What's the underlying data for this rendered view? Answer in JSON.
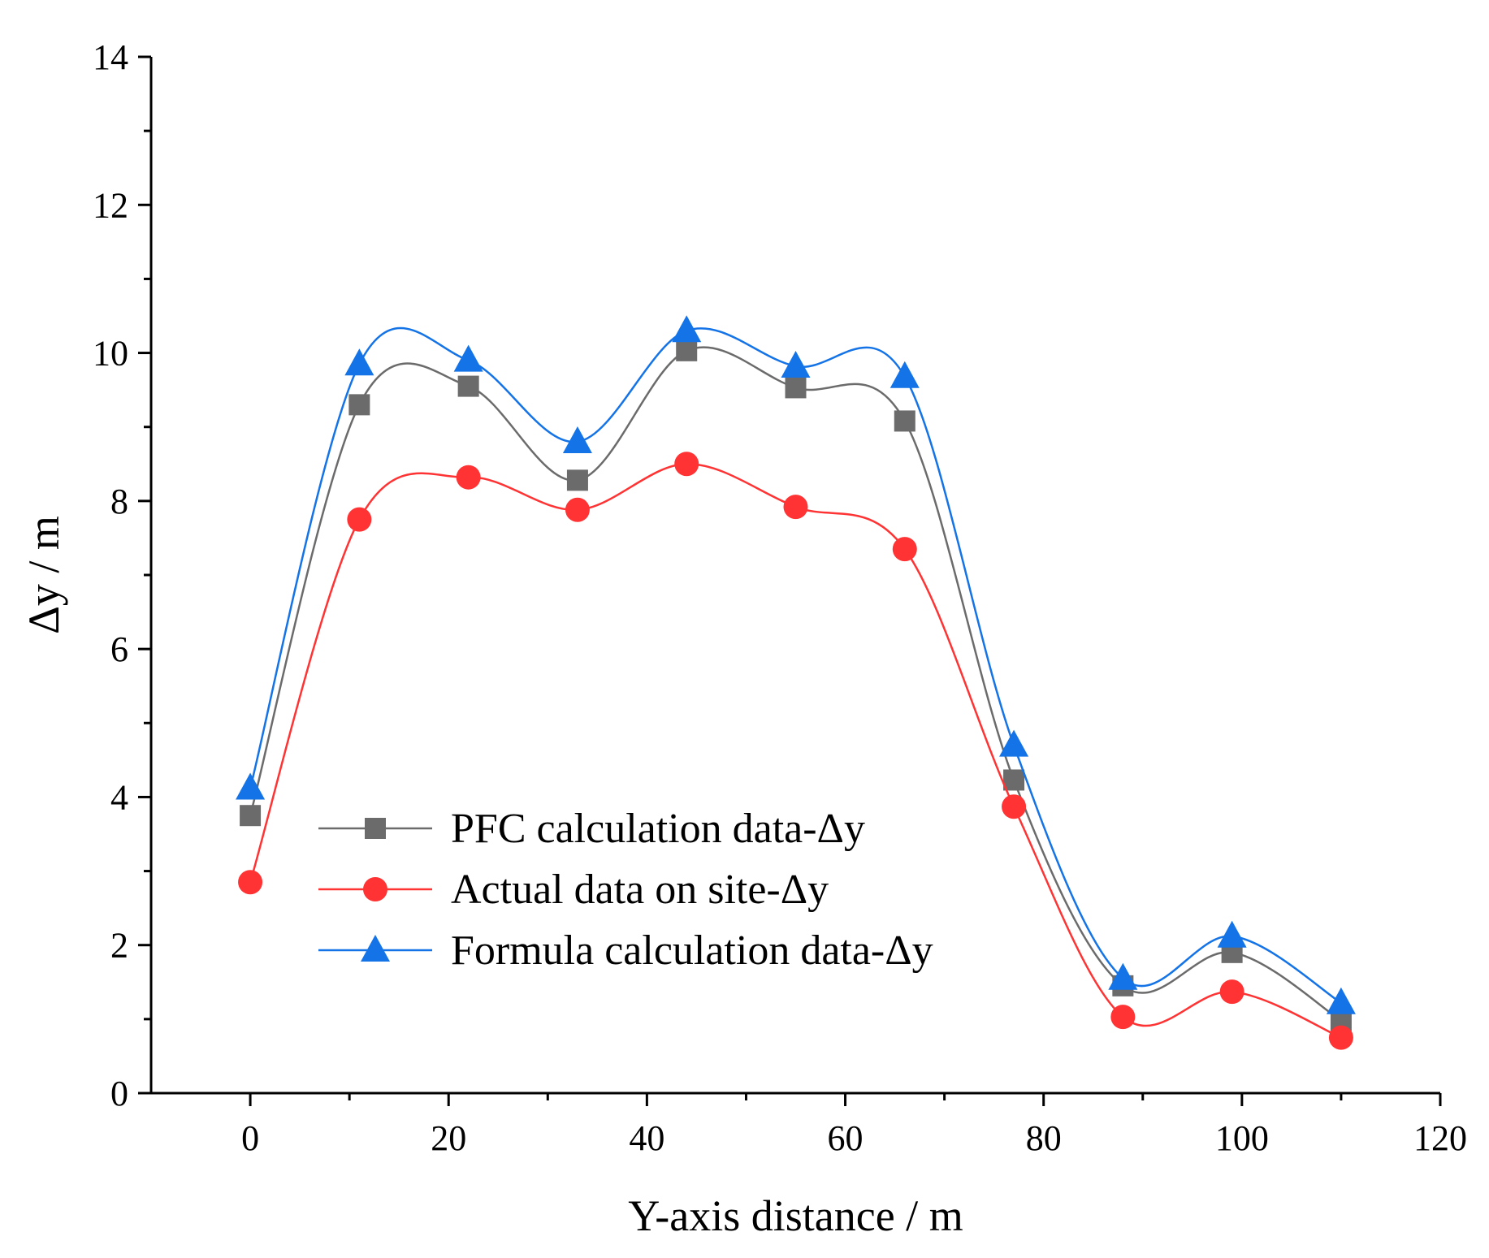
{
  "chart_data": {
    "type": "line",
    "title": "",
    "xlabel": "Y-axis distance / m",
    "ylabel": "Δy / m",
    "xlim": [
      -10,
      120
    ],
    "ylim": [
      0,
      14
    ],
    "x_ticks": [
      0,
      20,
      40,
      60,
      80,
      100,
      120
    ],
    "x_tick_labels": [
      "0",
      "20",
      "40",
      "60",
      "80",
      "100",
      "120"
    ],
    "x_minor_ticks": [
      -10,
      10,
      30,
      50,
      70,
      90,
      110
    ],
    "y_ticks": [
      0,
      2,
      4,
      6,
      8,
      10,
      12,
      14
    ],
    "y_tick_labels": [
      "0",
      "2",
      "4",
      "6",
      "8",
      "10",
      "12",
      "14"
    ],
    "y_minor_ticks": [
      1,
      3,
      5,
      7,
      9,
      11,
      13
    ],
    "grid": false,
    "legend_position": "lower-left",
    "x": [
      0,
      11,
      22,
      33,
      44,
      55,
      66,
      77,
      88,
      99,
      110
    ],
    "series": [
      {
        "name": "PFC calculation data-Δy",
        "marker": "square",
        "color": "#6b6b6b",
        "values": [
          3.75,
          9.3,
          9.55,
          8.28,
          10.03,
          9.53,
          9.08,
          4.23,
          1.45,
          1.9,
          0.98
        ]
      },
      {
        "name": "Actual data on site-Δy",
        "marker": "circle",
        "color": "#ff3333",
        "values": [
          2.85,
          7.75,
          8.32,
          7.88,
          8.5,
          7.92,
          7.35,
          3.87,
          1.03,
          1.37,
          0.75
        ]
      },
      {
        "name": "Formula calculation data-Δy",
        "marker": "triangle",
        "color": "#1473e6",
        "values": [
          4.12,
          9.85,
          9.9,
          8.8,
          10.3,
          9.82,
          9.68,
          4.7,
          1.55,
          2.12,
          1.22
        ]
      }
    ]
  }
}
